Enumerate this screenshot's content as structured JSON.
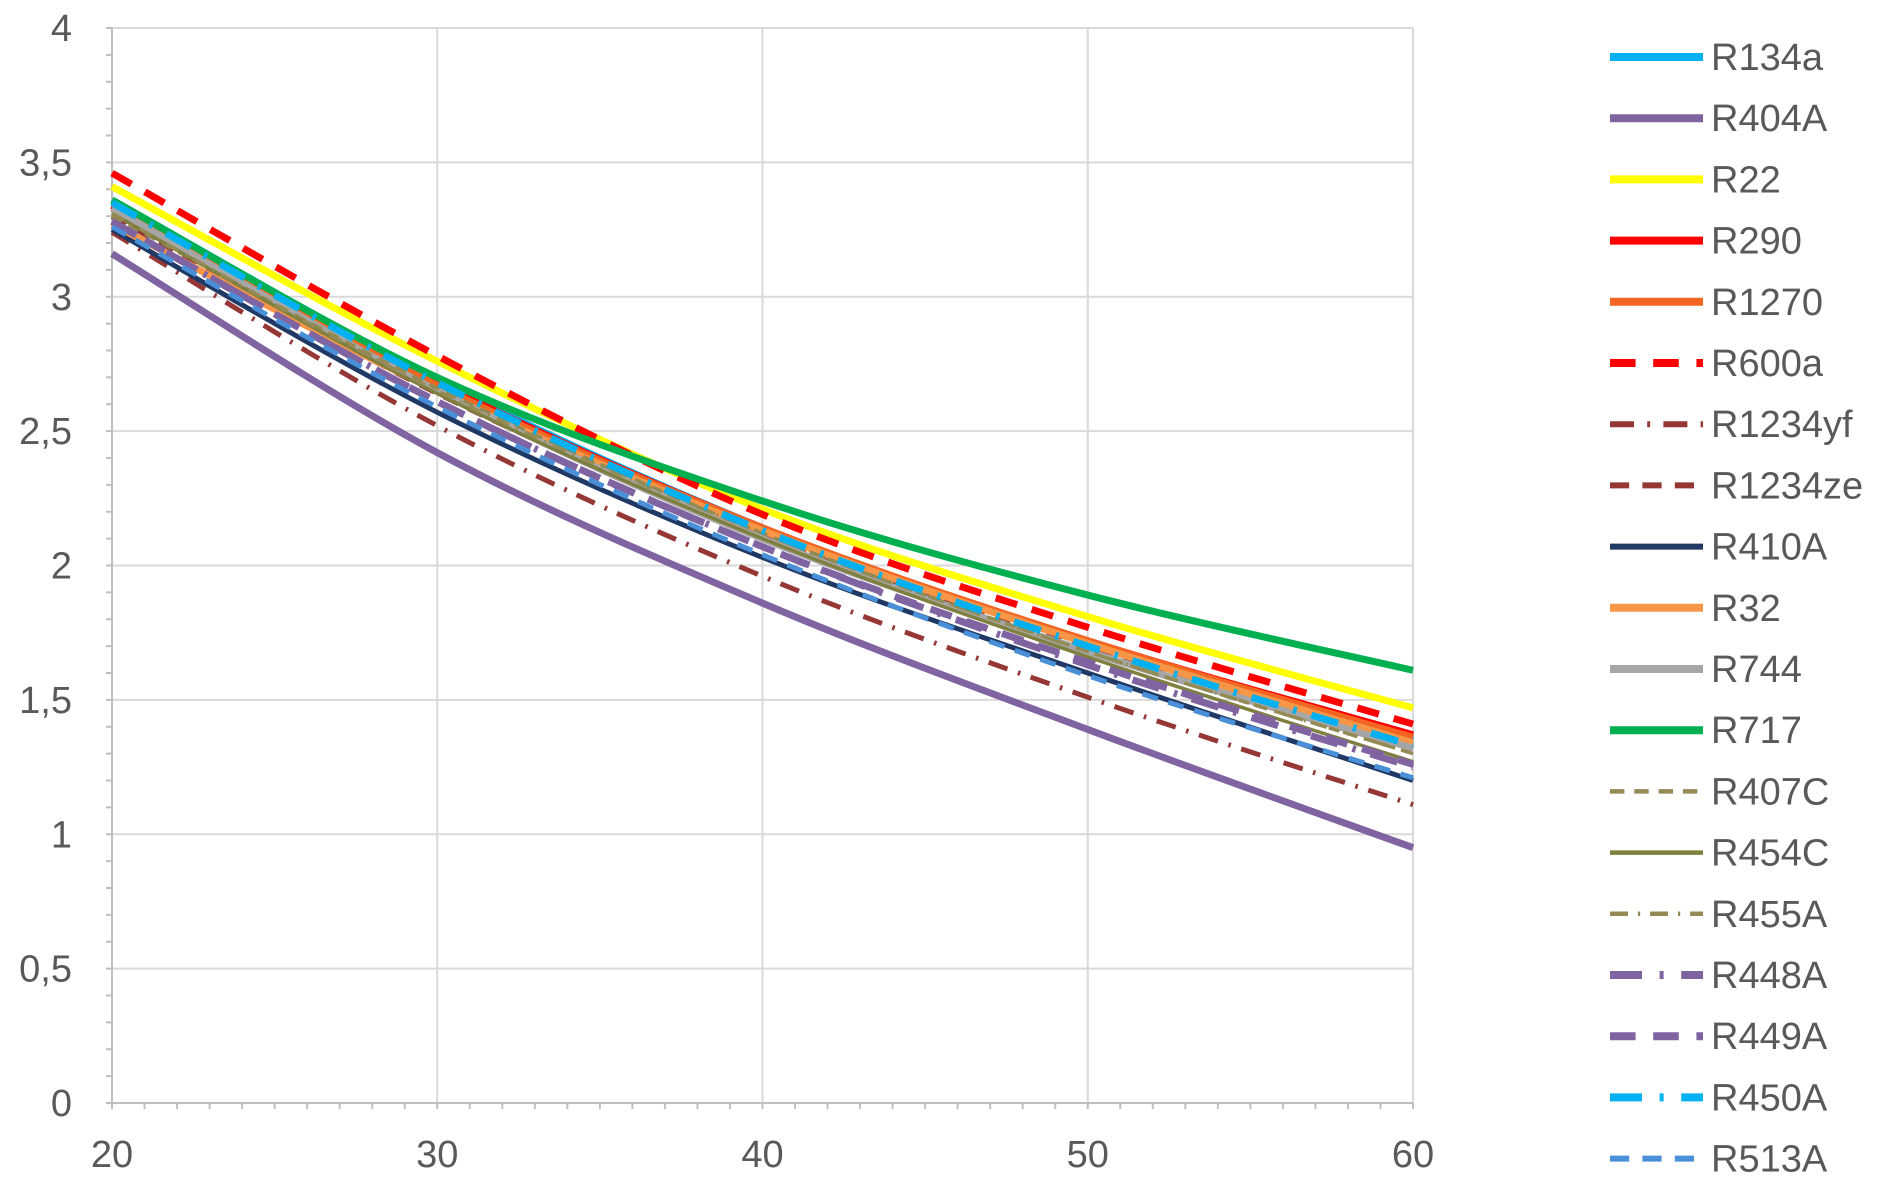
{
  "chart_data": {
    "type": "line",
    "title": "",
    "xlabel": "",
    "ylabel": "",
    "xlim": [
      20,
      60
    ],
    "ylim": [
      0,
      4
    ],
    "x_ticks": [
      20,
      30,
      40,
      50,
      60
    ],
    "y_ticks": [
      0,
      0.5,
      1,
      1.5,
      2,
      2.5,
      3,
      3.5,
      4
    ],
    "x_tick_labels": [
      "20",
      "30",
      "40",
      "50",
      "60"
    ],
    "y_tick_labels": [
      "0",
      "0,5",
      "1",
      "1,5",
      "2",
      "2,5",
      "3",
      "3,5",
      "4"
    ],
    "grid": true,
    "legend_position": "right",
    "x": [
      20,
      30,
      40,
      50,
      60
    ],
    "series": [
      {
        "name": "R134a",
        "values": [
          3.36,
          2.69,
          2.14,
          1.71,
          1.35
        ],
        "color": "#00b0f0",
        "dash": "solid",
        "width": "thick"
      },
      {
        "name": "R404A",
        "values": [
          3.16,
          2.42,
          1.86,
          1.39,
          0.95
        ],
        "color": "#8064a2",
        "dash": "solid",
        "width": "thick"
      },
      {
        "name": "R22",
        "values": [
          3.41,
          2.76,
          2.21,
          1.81,
          1.47
        ],
        "color": "#ffff00",
        "dash": "solid",
        "width": "thick"
      },
      {
        "name": "R290",
        "values": [
          3.34,
          2.68,
          2.14,
          1.72,
          1.37
        ],
        "color": "#ff0000",
        "dash": "solid",
        "width": "thick"
      },
      {
        "name": "R1270",
        "values": [
          3.33,
          2.67,
          2.14,
          1.72,
          1.36
        ],
        "color": "#f26522",
        "dash": "solid",
        "width": "thick"
      },
      {
        "name": "R600a",
        "values": [
          3.46,
          2.78,
          2.19,
          1.77,
          1.41
        ],
        "color": "#ff0000",
        "dash": "dash",
        "width": "thick"
      },
      {
        "name": "R1234yf",
        "values": [
          3.24,
          2.52,
          1.96,
          1.51,
          1.11
        ],
        "color": "#953735",
        "dash": "dashdot",
        "width": "medium"
      },
      {
        "name": "R1234ze",
        "values": [
          3.3,
          2.64,
          2.11,
          1.7,
          1.32
        ],
        "color": "#953735",
        "dash": "dash",
        "width": "medium"
      },
      {
        "name": "R410A",
        "values": [
          3.25,
          2.57,
          2.03,
          1.6,
          1.2
        ],
        "color": "#1f3864",
        "dash": "solid",
        "width": "medium"
      },
      {
        "name": "R32",
        "values": [
          3.27,
          2.65,
          2.13,
          1.71,
          1.34
        ],
        "color": "#f79646",
        "dash": "solid",
        "width": "thick"
      },
      {
        "name": "R744",
        "values": [
          3.33,
          2.65,
          2.1,
          1.68,
          1.32
        ],
        "color": "#a6a6a6",
        "dash": "solid",
        "width": "thick"
      },
      {
        "name": "R717",
        "values": [
          3.36,
          2.7,
          2.24,
          1.89,
          1.61
        ],
        "color": "#00b050",
        "dash": "solid",
        "width": "thick"
      },
      {
        "name": "R407C",
        "values": [
          3.3,
          2.66,
          2.12,
          1.68,
          1.3
        ],
        "color": "#948a54",
        "dash": "dash",
        "width": "thin"
      },
      {
        "name": "R454C",
        "values": [
          3.31,
          2.64,
          2.1,
          1.66,
          1.27
        ],
        "color": "#7f7f3f",
        "dash": "solid",
        "width": "thin"
      },
      {
        "name": "R455A",
        "values": [
          3.31,
          2.65,
          2.12,
          1.68,
          1.3
        ],
        "color": "#948a54",
        "dash": "dashdot",
        "width": "thin"
      },
      {
        "name": "R448A",
        "values": [
          3.28,
          2.61,
          2.07,
          1.63,
          1.25
        ],
        "color": "#8064a2",
        "dash": "dashdot",
        "width": "thick"
      },
      {
        "name": "R449A",
        "values": [
          3.28,
          2.61,
          2.07,
          1.64,
          1.26
        ],
        "color": "#8064a2",
        "dash": "dash",
        "width": "thick"
      },
      {
        "name": "R450A",
        "values": [
          3.35,
          2.68,
          2.13,
          1.7,
          1.33
        ],
        "color": "#00b0f0",
        "dash": "dashdot",
        "width": "thick"
      },
      {
        "name": "R513A",
        "values": [
          3.26,
          2.59,
          2.04,
          1.59,
          1.21
        ],
        "color": "#4a90d9",
        "dash": "dash",
        "width": "medium"
      }
    ]
  }
}
